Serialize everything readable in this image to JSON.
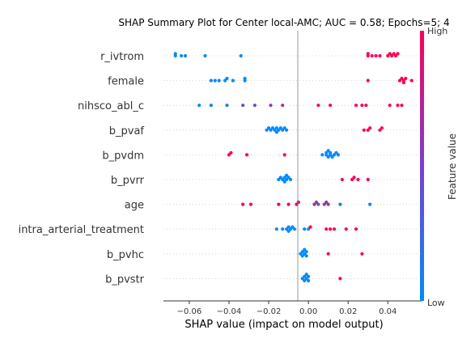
{
  "chart_data": {
    "type": "scatter",
    "title": "SHAP Summary Plot for Center local-AMC; AUC = 0.58; Epochs=5; 4",
    "xlabel": "SHAP value (impact on model output)",
    "xticks": [
      "−0.06",
      "−0.04",
      "−0.02",
      "0.00",
      "0.02",
      "0.04"
    ],
    "xtick_values": [
      -0.06,
      -0.04,
      -0.02,
      0.0,
      0.02,
      0.04
    ],
    "xlim": [
      -0.073,
      0.057
    ],
    "grid": false,
    "colorbar": {
      "label": "Feature value",
      "high_label": "High",
      "low_label": "Low",
      "low_color": "#008bfb",
      "high_color": "#ff0052"
    },
    "features": [
      {
        "name": "r_ivtrom",
        "points": [
          {
            "x": -0.067,
            "c": 0
          },
          {
            "x": -0.067,
            "c": 0
          },
          {
            "x": -0.064,
            "c": 0
          },
          {
            "x": -0.062,
            "c": 0
          },
          {
            "x": -0.052,
            "c": 0
          },
          {
            "x": -0.034,
            "c": 0
          },
          {
            "x": 0.03,
            "c": 1
          },
          {
            "x": 0.03,
            "c": 1
          },
          {
            "x": 0.032,
            "c": 1
          },
          {
            "x": 0.034,
            "c": 1
          },
          {
            "x": 0.036,
            "c": 1
          },
          {
            "x": 0.04,
            "c": 1
          },
          {
            "x": 0.041,
            "c": 1
          },
          {
            "x": 0.042,
            "c": 1
          },
          {
            "x": 0.043,
            "c": 1
          },
          {
            "x": 0.044,
            "c": 1
          },
          {
            "x": 0.045,
            "c": 1
          }
        ]
      },
      {
        "name": "female",
        "points": [
          {
            "x": -0.049,
            "c": 0
          },
          {
            "x": -0.047,
            "c": 0
          },
          {
            "x": -0.045,
            "c": 0
          },
          {
            "x": -0.042,
            "c": 0
          },
          {
            "x": -0.041,
            "c": 0
          },
          {
            "x": -0.038,
            "c": 0
          },
          {
            "x": -0.032,
            "c": 0
          },
          {
            "x": -0.032,
            "c": 0
          },
          {
            "x": 0.03,
            "c": 1
          },
          {
            "x": 0.046,
            "c": 1
          },
          {
            "x": 0.047,
            "c": 1
          },
          {
            "x": 0.048,
            "c": 1
          },
          {
            "x": 0.048,
            "c": 1
          },
          {
            "x": 0.049,
            "c": 1
          },
          {
            "x": 0.052,
            "c": 1
          }
        ]
      },
      {
        "name": "nihsco_abl_c",
        "points": [
          {
            "x": -0.055,
            "c": 0
          },
          {
            "x": -0.049,
            "c": 0.05
          },
          {
            "x": -0.041,
            "c": 0.1
          },
          {
            "x": -0.033,
            "c": 0.4
          },
          {
            "x": -0.027,
            "c": 0.45
          },
          {
            "x": -0.019,
            "c": 0.55
          },
          {
            "x": -0.013,
            "c": 0.65
          },
          {
            "x": 0.005,
            "c": 0.9
          },
          {
            "x": 0.011,
            "c": 0.95
          },
          {
            "x": 0.024,
            "c": 1
          },
          {
            "x": 0.027,
            "c": 1
          },
          {
            "x": 0.029,
            "c": 1
          },
          {
            "x": 0.041,
            "c": 1
          },
          {
            "x": 0.045,
            "c": 1
          },
          {
            "x": 0.047,
            "c": 1
          }
        ]
      },
      {
        "name": "b_pvaf",
        "points": [
          {
            "x": -0.021,
            "c": 0
          },
          {
            "x": -0.02,
            "c": 0
          },
          {
            "x": -0.019,
            "c": 0
          },
          {
            "x": -0.018,
            "c": 0
          },
          {
            "x": -0.017,
            "c": 0
          },
          {
            "x": -0.016,
            "c": 0
          },
          {
            "x": -0.016,
            "c": 0
          },
          {
            "x": -0.015,
            "c": 0
          },
          {
            "x": -0.014,
            "c": 0
          },
          {
            "x": -0.013,
            "c": 0
          },
          {
            "x": -0.012,
            "c": 0
          },
          {
            "x": -0.011,
            "c": 0
          },
          {
            "x": 0.028,
            "c": 1
          },
          {
            "x": 0.03,
            "c": 1
          },
          {
            "x": 0.031,
            "c": 1
          },
          {
            "x": 0.036,
            "c": 1
          },
          {
            "x": 0.037,
            "c": 1
          }
        ]
      },
      {
        "name": "b_pvdm",
        "points": [
          {
            "x": -0.04,
            "c": 1
          },
          {
            "x": -0.039,
            "c": 1
          },
          {
            "x": -0.031,
            "c": 1
          },
          {
            "x": -0.012,
            "c": 1
          },
          {
            "x": 0.007,
            "c": 0
          },
          {
            "x": 0.009,
            "c": 0
          },
          {
            "x": 0.009,
            "c": 0
          },
          {
            "x": 0.01,
            "c": 0
          },
          {
            "x": 0.01,
            "c": 0
          },
          {
            "x": 0.011,
            "c": 0
          },
          {
            "x": 0.011,
            "c": 0
          },
          {
            "x": 0.012,
            "c": 0
          },
          {
            "x": 0.013,
            "c": 0
          },
          {
            "x": 0.014,
            "c": 0
          },
          {
            "x": 0.015,
            "c": 0
          }
        ]
      },
      {
        "name": "b_pvrr",
        "points": [
          {
            "x": -0.015,
            "c": 0
          },
          {
            "x": -0.014,
            "c": 0
          },
          {
            "x": -0.013,
            "c": 0
          },
          {
            "x": -0.012,
            "c": 0
          },
          {
            "x": -0.012,
            "c": 0
          },
          {
            "x": -0.011,
            "c": 0
          },
          {
            "x": -0.011,
            "c": 0
          },
          {
            "x": -0.01,
            "c": 0
          },
          {
            "x": -0.009,
            "c": 0
          },
          {
            "x": 0.017,
            "c": 1
          },
          {
            "x": 0.022,
            "c": 1
          },
          {
            "x": 0.023,
            "c": 1
          },
          {
            "x": 0.025,
            "c": 1
          },
          {
            "x": 0.03,
            "c": 1
          }
        ]
      },
      {
        "name": "age",
        "points": [
          {
            "x": -0.033,
            "c": 0.95
          },
          {
            "x": -0.029,
            "c": 0.95
          },
          {
            "x": -0.015,
            "c": 0.9
          },
          {
            "x": -0.01,
            "c": 0.85
          },
          {
            "x": -0.006,
            "c": 0.8
          },
          {
            "x": -0.005,
            "c": 0.8
          },
          {
            "x": 0.003,
            "c": 0.6
          },
          {
            "x": 0.004,
            "c": 0.55
          },
          {
            "x": 0.005,
            "c": 0.4
          },
          {
            "x": 0.008,
            "c": 0.5
          },
          {
            "x": 0.009,
            "c": 0.6
          },
          {
            "x": 0.01,
            "c": 0.55
          },
          {
            "x": 0.016,
            "c": 0.1
          },
          {
            "x": 0.031,
            "c": 0
          }
        ]
      },
      {
        "name": "intra_arterial_treatment",
        "points": [
          {
            "x": -0.016,
            "c": 0
          },
          {
            "x": -0.013,
            "c": 0
          },
          {
            "x": -0.011,
            "c": 0
          },
          {
            "x": -0.01,
            "c": 0
          },
          {
            "x": -0.01,
            "c": 0
          },
          {
            "x": -0.009,
            "c": 0
          },
          {
            "x": -0.008,
            "c": 0
          },
          {
            "x": -0.007,
            "c": 0
          },
          {
            "x": -0.002,
            "c": 0
          },
          {
            "x": 0.0,
            "c": 0
          },
          {
            "x": 0.001,
            "c": 1
          },
          {
            "x": 0.009,
            "c": 1
          },
          {
            "x": 0.011,
            "c": 1
          },
          {
            "x": 0.013,
            "c": 1
          },
          {
            "x": 0.019,
            "c": 1
          },
          {
            "x": 0.024,
            "c": 1
          }
        ]
      },
      {
        "name": "b_pvhc",
        "points": [
          {
            "x": -0.004,
            "c": 0
          },
          {
            "x": -0.003,
            "c": 0
          },
          {
            "x": -0.003,
            "c": 0
          },
          {
            "x": -0.002,
            "c": 0
          },
          {
            "x": -0.002,
            "c": 0
          },
          {
            "x": -0.001,
            "c": 0
          },
          {
            "x": -0.001,
            "c": 0
          },
          {
            "x": 0.01,
            "c": 1
          },
          {
            "x": 0.027,
            "c": 1
          }
        ]
      },
      {
        "name": "b_pvstr",
        "points": [
          {
            "x": -0.003,
            "c": 0
          },
          {
            "x": -0.002,
            "c": 0
          },
          {
            "x": -0.002,
            "c": 0
          },
          {
            "x": -0.001,
            "c": 0
          },
          {
            "x": -0.001,
            "c": 0
          },
          {
            "x": 0.0,
            "c": 0
          },
          {
            "x": 0.0,
            "c": 0
          },
          {
            "x": 0.016,
            "c": 1
          }
        ]
      }
    ]
  }
}
